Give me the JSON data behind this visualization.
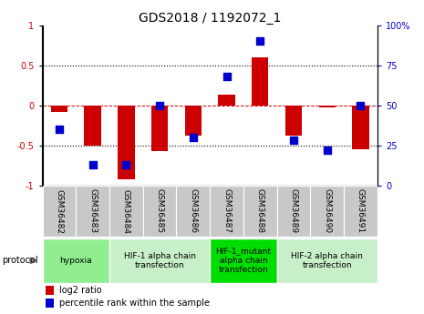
{
  "title": "GDS2018 / 1192072_1",
  "samples": [
    "GSM36482",
    "GSM36483",
    "GSM36484",
    "GSM36485",
    "GSM36486",
    "GSM36487",
    "GSM36488",
    "GSM36489",
    "GSM36490",
    "GSM36491"
  ],
  "log2_ratio": [
    -0.08,
    -0.5,
    -0.92,
    -0.57,
    -0.38,
    0.13,
    0.6,
    -0.38,
    -0.03,
    -0.55
  ],
  "percentile_rank": [
    35,
    13,
    13,
    50,
    30,
    68,
    90,
    28,
    22,
    50
  ],
  "ylim_left": [
    -1,
    1
  ],
  "ylim_right": [
    0,
    100
  ],
  "yticks_left": [
    -1,
    -0.5,
    0,
    0.5,
    1
  ],
  "ytick_labels_left": [
    "-1",
    "-0.5",
    "0",
    "0.5",
    "1"
  ],
  "yticks_right": [
    0,
    25,
    50,
    75,
    100
  ],
  "ytick_labels_right": [
    "0",
    "25",
    "50",
    "75",
    "100%"
  ],
  "hlines": [
    0.5,
    0.0,
    -0.5
  ],
  "hline_colors": [
    "black",
    "#cc0000",
    "black"
  ],
  "hline_styles": [
    "dotted",
    "dashed",
    "dotted"
  ],
  "bar_color": "#CC0000",
  "dot_color": "#0000CC",
  "bar_width": 0.5,
  "dot_size": 35,
  "protocol_groups": [
    {
      "label": "hypoxia",
      "start": 0,
      "end": 1,
      "color": "#90EE90"
    },
    {
      "label": "HIF-1 alpha chain\ntransfection",
      "start": 2,
      "end": 4,
      "color": "#c8f0c8"
    },
    {
      "label": "HIF-1_mutant\nalpha chain\ntransfection",
      "start": 5,
      "end": 6,
      "color": "#00dd00"
    },
    {
      "label": "HIF-2 alpha chain\ntransfection",
      "start": 7,
      "end": 9,
      "color": "#c8f0c8"
    }
  ],
  "sample_bg": "#c8c8c8",
  "sample_border": "#ffffff",
  "plot_bg": "#ffffff",
  "title_fontsize": 10,
  "tick_fontsize": 7,
  "sample_fontsize": 6.5,
  "proto_fontsize": 6.5,
  "legend_fontsize": 7,
  "left_tick_color": "#cc0000",
  "right_tick_color": "#0000CC",
  "protocol_label": "protocol",
  "proto_arrow_color": "#808080"
}
